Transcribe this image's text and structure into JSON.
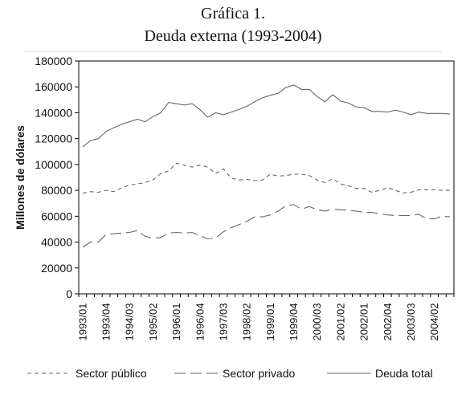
{
  "chart_data": {
    "type": "line",
    "title": "Gráfica 1.",
    "subtitle": "Deuda externa (1993-2004)",
    "ylabel": "Millones de dólares",
    "xlabel": "",
    "ylim": [
      0,
      180000
    ],
    "yticks": [
      "0",
      "20000",
      "40000",
      "60000",
      "80000",
      "100000",
      "120000",
      "140000",
      "160000",
      "180000"
    ],
    "xtick_labels": [
      "1993/01",
      "1993/04",
      "1994/03",
      "1995/02",
      "1996/01",
      "1996/04",
      "1997/03",
      "1998/02",
      "1999/01",
      "1999/04",
      "2000/03",
      "2001/02",
      "2002/01",
      "2002/04",
      "2003/03",
      "2004/02"
    ],
    "x": [
      "1993/01",
      "1993/02",
      "1993/03",
      "1993/04",
      "1994/01",
      "1994/02",
      "1994/03",
      "1994/04",
      "1995/01",
      "1995/02",
      "1995/03",
      "1995/04",
      "1996/01",
      "1996/02",
      "1996/03",
      "1996/04",
      "1997/01",
      "1997/02",
      "1997/03",
      "1997/04",
      "1998/01",
      "1998/02",
      "1998/03",
      "1998/04",
      "1999/01",
      "1999/02",
      "1999/03",
      "1999/04",
      "2000/01",
      "2000/02",
      "2000/03",
      "2000/04",
      "2001/01",
      "2001/02",
      "2001/03",
      "2001/04",
      "2002/01",
      "2002/02",
      "2002/03",
      "2002/04",
      "2003/01",
      "2003/02",
      "2003/03",
      "2003/04",
      "2004/01",
      "2004/02",
      "2004/03",
      "2004/04"
    ],
    "series": [
      {
        "name": "Sector público",
        "style": "dotted",
        "values": [
          77800,
          79000,
          78500,
          80000,
          79000,
          82000,
          84000,
          85000,
          86000,
          88000,
          93000,
          95000,
          101000,
          99500,
          98000,
          99500,
          98000,
          93000,
          96500,
          89500,
          88000,
          88500,
          87500,
          88000,
          92500,
          91000,
          91500,
          92500,
          92500,
          91500,
          88000,
          86000,
          89000,
          85000,
          83500,
          81500,
          81500,
          78500,
          80000,
          82000,
          80000,
          78000,
          78500,
          80500,
          80500,
          80500,
          80000,
          80000
        ]
      },
      {
        "name": "Sector privado",
        "style": "dashed",
        "values": [
          36000,
          40000,
          40000,
          46000,
          46500,
          47000,
          47500,
          49000,
          44500,
          43000,
          43500,
          47000,
          47500,
          47000,
          47500,
          45000,
          42500,
          43000,
          48000,
          51000,
          53500,
          56000,
          59500,
          59500,
          61000,
          64000,
          68000,
          69000,
          65500,
          67500,
          65000,
          64000,
          65500,
          65000,
          64500,
          64000,
          63000,
          63000,
          62000,
          61000,
          60500,
          60500,
          60500,
          61500,
          58000,
          58000,
          60000,
          59500
        ]
      },
      {
        "name": "Deuda total",
        "style": "solid",
        "values": [
          113500,
          118500,
          120000,
          125500,
          128500,
          131000,
          133000,
          135000,
          133000,
          137000,
          140000,
          148000,
          147000,
          146000,
          147000,
          142500,
          136500,
          140000,
          138500,
          140500,
          142500,
          145000,
          148500,
          151500,
          153500,
          155000,
          159500,
          161500,
          158000,
          158000,
          152500,
          148500,
          154000,
          149000,
          147500,
          144500,
          144000,
          141000,
          141000,
          140500,
          142000,
          140500,
          138500,
          140500,
          139500,
          139500,
          139500,
          139000
        ]
      }
    ],
    "legend_position": "bottom",
    "grid": false
  }
}
